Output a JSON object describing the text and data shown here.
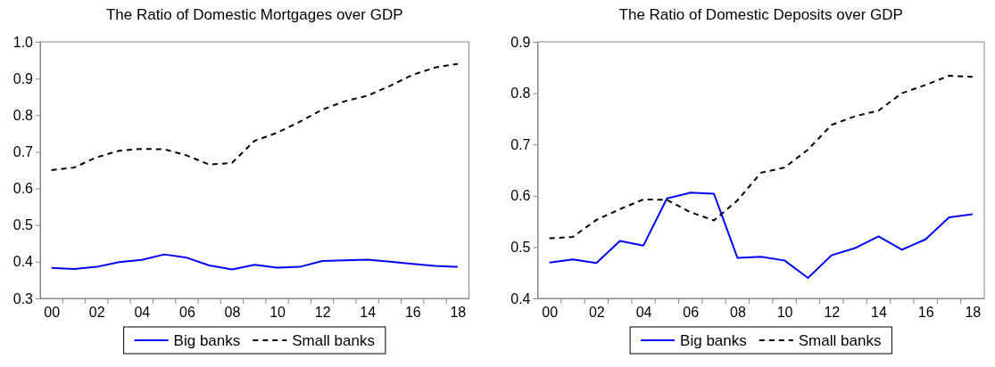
{
  "chart_data": [
    {
      "type": "line",
      "title": "The Ratio of Domestic Mortgages over GDP",
      "categories": [
        "00",
        null,
        "02",
        null,
        "04",
        null,
        "06",
        null,
        "08",
        null,
        "10",
        null,
        "12",
        null,
        "14",
        null,
        "16",
        null,
        "18"
      ],
      "series": [
        {
          "name": "Big banks",
          "color": "#0000ff",
          "line_style": "solid",
          "values": [
            0.383,
            0.38,
            0.386,
            0.399,
            0.405,
            0.42,
            0.411,
            0.39,
            0.379,
            0.392,
            0.384,
            0.386,
            0.402,
            0.404,
            0.406,
            0.4,
            0.394,
            0.389,
            0.386
          ]
        },
        {
          "name": "Small banks",
          "color": "#000000",
          "line_style": "dashed",
          "values": [
            0.65,
            0.657,
            0.685,
            0.703,
            0.708,
            0.707,
            0.69,
            0.665,
            0.67,
            0.73,
            0.752,
            0.782,
            0.815,
            0.838,
            0.853,
            0.88,
            0.91,
            0.93,
            0.94
          ]
        }
      ],
      "ylim": [
        0.3,
        1.0
      ],
      "yticks": [
        {
          "value": 0.3,
          "label": "0.3"
        },
        {
          "value": 0.4,
          "label": "0.4"
        },
        {
          "value": 0.5,
          "label": "0.5"
        },
        {
          "value": 0.6,
          "label": "0.6"
        },
        {
          "value": 0.7,
          "label": "0.7"
        },
        {
          "value": 0.8,
          "label": "0.8"
        },
        {
          "value": 0.9,
          "label": "0.9"
        },
        {
          "value": 1.0,
          "label": "1.0"
        }
      ],
      "grid": false,
      "legend": "bottom",
      "marker": "none"
    },
    {
      "type": "line",
      "title": "The Ratio of Domestic Deposits over GDP",
      "categories": [
        "00",
        null,
        "02",
        null,
        "04",
        null,
        "06",
        null,
        "08",
        null,
        "10",
        null,
        "12",
        null,
        "14",
        null,
        "16",
        null,
        "18"
      ],
      "series": [
        {
          "name": "Big banks",
          "color": "#0000ff",
          "line_style": "solid",
          "values": [
            0.47,
            0.476,
            0.469,
            0.512,
            0.503,
            0.595,
            0.606,
            0.604,
            0.479,
            0.481,
            0.474,
            0.44,
            0.484,
            0.498,
            0.521,
            0.495,
            0.515,
            0.558,
            0.564
          ]
        },
        {
          "name": "Small banks",
          "color": "#000000",
          "line_style": "dashed",
          "values": [
            0.517,
            0.52,
            0.553,
            0.574,
            0.593,
            0.592,
            0.568,
            0.552,
            0.591,
            0.645,
            0.655,
            0.69,
            0.738,
            0.755,
            0.766,
            0.8,
            0.816,
            0.834,
            0.832
          ]
        }
      ],
      "ylim": [
        0.4,
        0.9
      ],
      "yticks": [
        {
          "value": 0.4,
          "label": "0.4"
        },
        {
          "value": 0.5,
          "label": "0.5"
        },
        {
          "value": 0.6,
          "label": "0.6"
        },
        {
          "value": 0.7,
          "label": "0.7"
        },
        {
          "value": 0.8,
          "label": "0.8"
        },
        {
          "value": 0.9,
          "label": "0.9"
        }
      ],
      "grid": false,
      "legend": "bottom",
      "marker": "none"
    }
  ]
}
